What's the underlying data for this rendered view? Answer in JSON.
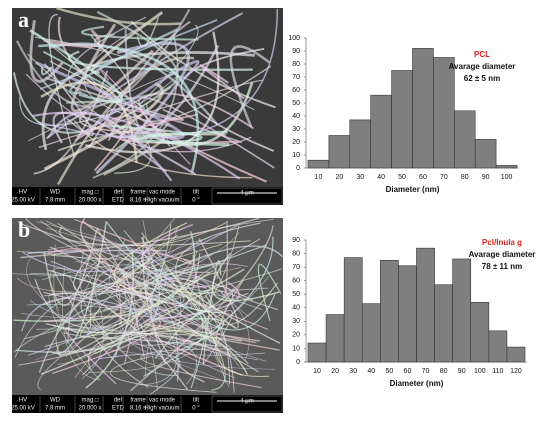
{
  "chart_data": [
    {
      "type": "bar",
      "title": "PCL",
      "title_color": "#e0201c",
      "annotations": [
        "Avarage diameter",
        "62 ± 5 nm"
      ],
      "x_label": "Diameter (nm)",
      "categories": [
        "10",
        "20",
        "30",
        "40",
        "50",
        "60",
        "70",
        "80",
        "90",
        "100"
      ],
      "values": [
        6,
        25,
        37,
        56,
        75,
        92,
        85,
        44,
        22,
        2
      ],
      "color": "#7f7f7f",
      "ylim": [
        0,
        100
      ],
      "yticks": [
        0,
        10,
        20,
        30,
        40,
        50,
        60,
        70,
        80,
        90,
        100
      ]
    },
    {
      "type": "bar",
      "title": "Pcl/Inula g",
      "title_color": "#e0201c",
      "annotations": [
        "Avarage diameter",
        "78 ± 11 nm"
      ],
      "x_label": "Diameter (nm)",
      "categories": [
        "10",
        "20",
        "30",
        "40",
        "50",
        "60",
        "70",
        "80",
        "90",
        "100",
        "110",
        "120"
      ],
      "values": [
        14,
        35,
        77,
        43,
        75,
        71,
        84,
        57,
        76,
        44,
        23,
        11
      ],
      "color": "#7f7f7f",
      "ylim": [
        0,
        90
      ],
      "yticks": [
        0,
        10,
        20,
        30,
        40,
        50,
        60,
        70,
        80,
        90
      ]
    }
  ],
  "micrographs": [
    {
      "label": "a",
      "info_labels": [
        "HV",
        "WD",
        "mag □",
        "det",
        "frame",
        "vac mode",
        "tilt"
      ],
      "info_values": [
        "25.00 kV",
        "7.8 mm",
        "20 000 x",
        "ETD",
        "8.16 s",
        "High vacuum",
        "0 °"
      ],
      "scale": "4 μm"
    },
    {
      "label": "b",
      "info_labels": [
        "HV",
        "WD",
        "mag □",
        "det",
        "frame",
        "vac mode",
        "tilt"
      ],
      "info_values": [
        "25.00 kV",
        "7.8 mm",
        "20 000 x",
        "ETD",
        "8.16 s",
        "High vacuum",
        "0 °"
      ],
      "scale": "4 μm"
    }
  ]
}
